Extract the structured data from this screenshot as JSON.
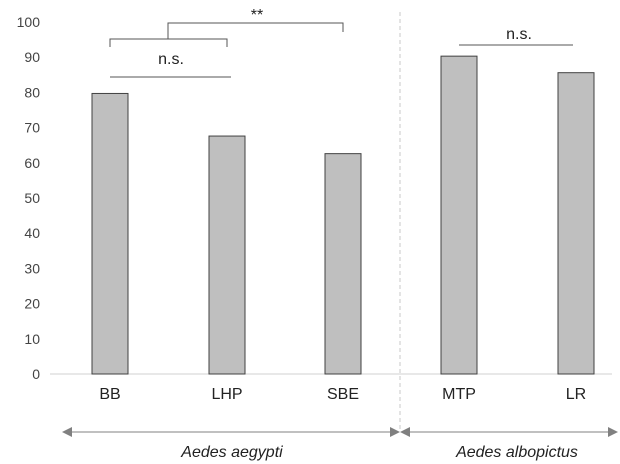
{
  "chart_data": {
    "type": "bar",
    "categories": [
      "BB",
      "LHP",
      "SBE",
      "MTP",
      "LR"
    ],
    "values": [
      79.7,
      67.6,
      62.6,
      90.3,
      85.6
    ],
    "ylim": [
      0,
      100
    ],
    "yticks": [
      "0",
      "10",
      "20",
      "30",
      "40",
      "50",
      "60",
      "70",
      "80",
      "90",
      "100"
    ],
    "grid": false,
    "bar_color": "#bfbfbf",
    "bar_edge_color": "#404040",
    "groups": [
      {
        "label": "Aedes aegypti",
        "members": [
          "BB",
          "LHP",
          "SBE"
        ]
      },
      {
        "label": "Aedes albopictus",
        "members": [
          "MTP",
          "LR"
        ]
      }
    ],
    "annotations": [
      {
        "label": "**",
        "compare": "BB vs LHP+SBE"
      },
      {
        "label": "n.s.",
        "compare": "BB vs LHP"
      },
      {
        "label": "n.s.",
        "compare": "MTP vs LR"
      }
    ]
  }
}
